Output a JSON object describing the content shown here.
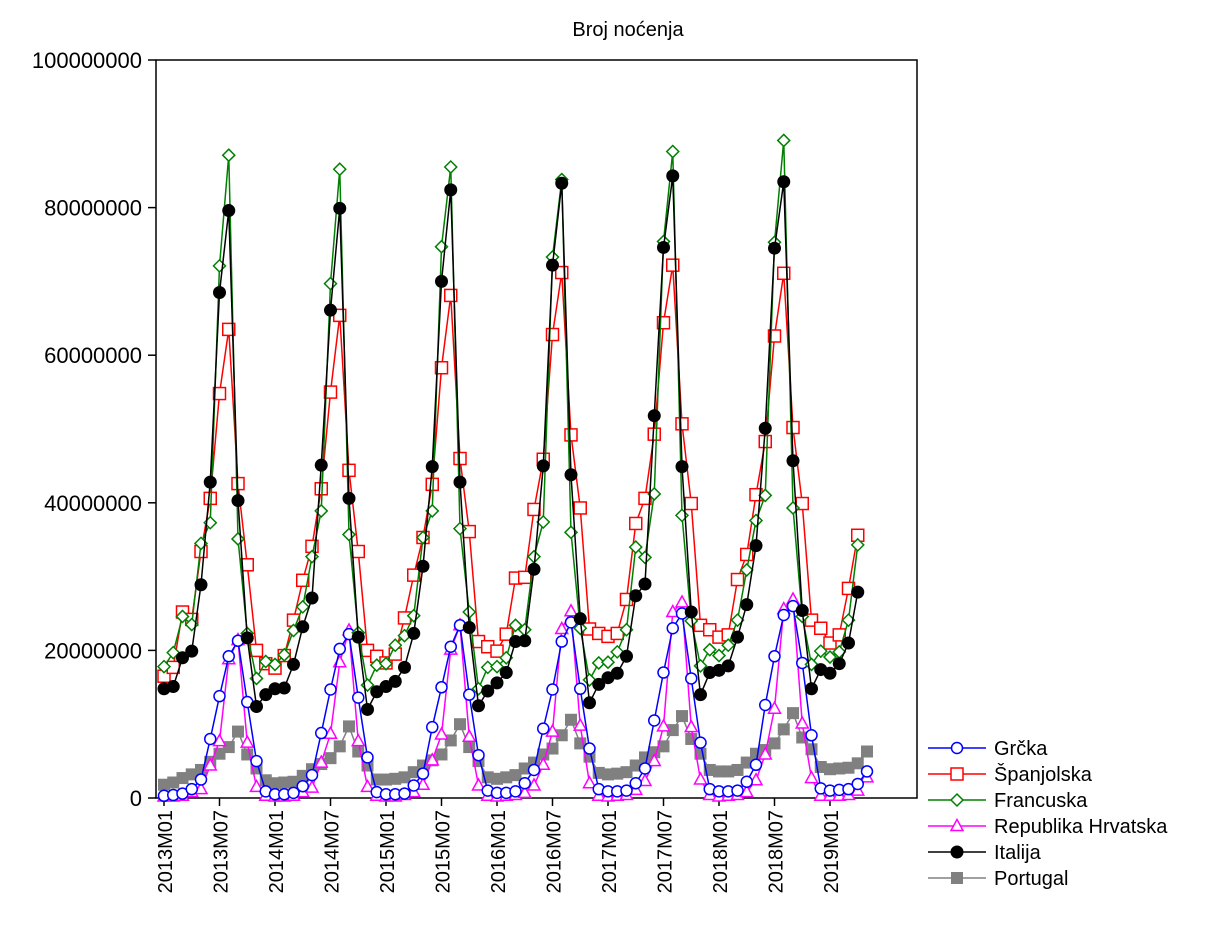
{
  "chart_data": {
    "type": "line",
    "title": "Broj noćenja",
    "xlabel": "",
    "ylabel": "",
    "ylim": [
      0,
      100000000
    ],
    "yticks": [
      0,
      20000000,
      40000000,
      60000000,
      80000000,
      100000000
    ],
    "ytick_labels": [
      "0",
      "20000000",
      "40000000",
      "60000000",
      "80000000",
      "100000000"
    ],
    "xticks": [
      "2013M01",
      "2013M07",
      "2014M01",
      "2014M07",
      "2015M01",
      "2015M07",
      "2016M01",
      "2016M07",
      "2017M01",
      "2017M07",
      "2018M01",
      "2018M07",
      "2019M01"
    ],
    "x_range": [
      "2013M01",
      "2019M07"
    ],
    "grid": false,
    "legend_position": "bottom-right, outside plot",
    "series": [
      {
        "name": "Grčka",
        "color": "#0000ff",
        "marker": "circle-open",
        "values": [
          300000,
          400000,
          600000,
          1200000,
          2500000,
          8000000,
          13800000,
          19200000,
          21300000,
          13000000,
          5000000,
          900000,
          500000,
          500000,
          700000,
          1600000,
          3100000,
          8800000,
          14700000,
          20200000,
          22200000,
          13600000,
          5500000,
          800000,
          500000,
          500000,
          600000,
          1700000,
          3300000,
          9600000,
          15000000,
          20500000,
          23400000,
          14000000,
          5800000,
          1000000,
          700000,
          700000,
          900000,
          2000000,
          3800000,
          9400000,
          14700000,
          21200000,
          23800000,
          14800000,
          6700000,
          1200000,
          900000,
          900000,
          1000000,
          2000000,
          4000000,
          10500000,
          17000000,
          23000000,
          25000000,
          16200000,
          7500000,
          1200000,
          900000,
          900000,
          1000000,
          2200000,
          4500000,
          12600000,
          19200000,
          24800000,
          26000000,
          18300000,
          8500000,
          1300000,
          1000000,
          1100000,
          1200000,
          1900000,
          3600000
        ]
      },
      {
        "name": "Španjolska",
        "color": "#ff0000",
        "marker": "square-open",
        "values": [
          16500000,
          17700000,
          25200000,
          24200000,
          33400000,
          40600000,
          54800000,
          63500000,
          42600000,
          31600000,
          20000000,
          18200000,
          17600000,
          19300000,
          24100000,
          29500000,
          34100000,
          41900000,
          55000000,
          65400000,
          44400000,
          33400000,
          20000000,
          19200000,
          18300000,
          19500000,
          24400000,
          30200000,
          35300000,
          42500000,
          58300000,
          68100000,
          46000000,
          36100000,
          21200000,
          20500000,
          19900000,
          22200000,
          29800000,
          29900000,
          39100000,
          45900000,
          62800000,
          71200000,
          49200000,
          39300000,
          22900000,
          22300000,
          21900000,
          22300000,
          26900000,
          37200000,
          40600000,
          49300000,
          64400000,
          72200000,
          50700000,
          39900000,
          23400000,
          22800000,
          21800000,
          22100000,
          29600000,
          33000000,
          41100000,
          48300000,
          62600000,
          71100000,
          50200000,
          39900000,
          24100000,
          23000000,
          21000000,
          22100000,
          28400000,
          35600000
        ]
      },
      {
        "name": "Francuska",
        "color": "#008000",
        "marker": "diamond-open",
        "values": [
          17800000,
          19700000,
          24600000,
          23500000,
          34500000,
          37300000,
          72100000,
          87100000,
          35100000,
          22300000,
          16200000,
          18500000,
          18100000,
          19400000,
          22700000,
          25900000,
          32700000,
          38900000,
          69700000,
          85200000,
          35700000,
          22400000,
          15300000,
          18000000,
          18200000,
          20700000,
          22000000,
          24700000,
          35300000,
          38900000,
          74700000,
          85500000,
          36500000,
          25200000,
          14800000,
          17700000,
          17800000,
          19000000,
          23400000,
          22800000,
          32700000,
          37400000,
          73300000,
          83800000,
          36000000,
          23000000,
          16000000,
          18300000,
          18400000,
          19800000,
          22800000,
          34000000,
          32600000,
          41200000,
          75400000,
          87600000,
          38300000,
          24000000,
          17900000,
          20100000,
          19300000,
          20700000,
          24100000,
          30900000,
          37600000,
          41000000,
          75300000,
          89100000,
          39300000,
          24600000,
          18100000,
          19900000,
          19100000,
          19800000,
          24100000,
          34300000
        ]
      },
      {
        "name": "Republika Hrvatska",
        "color": "#ff00ff",
        "marker": "triangle-open",
        "values": [
          200000,
          200000,
          300000,
          800000,
          1200000,
          4400000,
          7700000,
          18800000,
          21400000,
          7500000,
          1500000,
          300000,
          200000,
          200000,
          300000,
          800000,
          1400000,
          4800000,
          8700000,
          18400000,
          22700000,
          7700000,
          1500000,
          300000,
          200000,
          200000,
          400000,
          800000,
          1800000,
          5100000,
          8600000,
          20100000,
          23400000,
          8300000,
          1700000,
          300000,
          200000,
          300000,
          400000,
          700000,
          1700000,
          4500000,
          9000000,
          22900000,
          25300000,
          9800000,
          2000000,
          300000,
          200000,
          300000,
          400000,
          1100000,
          2300000,
          5000000,
          9700000,
          25200000,
          26500000,
          9600000,
          2500000,
          400000,
          200000,
          300000,
          400000,
          800000,
          2400000,
          5900000,
          12100000,
          25600000,
          26900000,
          10100000,
          2700000,
          300000,
          300000,
          300000,
          400000,
          1000000,
          2800000
        ]
      },
      {
        "name": "Italija",
        "color": "#000000",
        "marker": "circle-filled",
        "values": [
          14800000,
          15100000,
          19000000,
          19900000,
          28900000,
          42800000,
          68500000,
          79600000,
          40300000,
          21700000,
          12400000,
          14000000,
          14800000,
          14900000,
          18100000,
          23200000,
          27100000,
          45100000,
          66100000,
          79900000,
          40600000,
          21800000,
          12000000,
          14400000,
          15100000,
          15800000,
          17700000,
          22300000,
          31400000,
          44900000,
          70000000,
          82400000,
          42800000,
          23100000,
          12500000,
          14500000,
          15600000,
          17000000,
          21200000,
          21300000,
          31000000,
          45000000,
          72200000,
          83300000,
          43800000,
          24300000,
          12900000,
          15400000,
          16300000,
          16900000,
          19200000,
          27400000,
          29000000,
          51800000,
          74600000,
          84300000,
          44900000,
          25200000,
          14000000,
          17000000,
          17300000,
          17900000,
          21800000,
          26200000,
          34200000,
          50100000,
          74500000,
          83500000,
          45700000,
          25400000,
          14800000,
          17400000,
          16900000,
          18200000,
          21000000,
          27900000
        ]
      },
      {
        "name": "Portugal",
        "color": "#808080",
        "marker": "square-filled",
        "values": [
          1800000,
          2100000,
          2700000,
          3200000,
          3800000,
          4900000,
          6000000,
          6900000,
          9000000,
          5900000,
          4000000,
          2400000,
          2000000,
          2100000,
          2200000,
          3000000,
          3900000,
          4600000,
          5400000,
          7000000,
          9700000,
          6300000,
          4400000,
          2500000,
          2500000,
          2600000,
          2800000,
          3500000,
          4400000,
          5100000,
          5900000,
          7800000,
          10000000,
          6900000,
          5000000,
          2800000,
          2600000,
          2800000,
          3100000,
          4000000,
          4800000,
          5900000,
          6700000,
          8500000,
          10600000,
          7400000,
          5600000,
          3400000,
          3200000,
          3300000,
          3500000,
          4400000,
          5500000,
          6200000,
          7000000,
          9200000,
          11100000,
          8000000,
          6000000,
          3800000,
          3600000,
          3600000,
          3800000,
          4800000,
          6000000,
          6500000,
          7400000,
          9300000,
          11500000,
          8200000,
          6600000,
          4200000,
          3900000,
          4000000,
          4100000,
          4700000,
          6300000
        ]
      }
    ]
  }
}
